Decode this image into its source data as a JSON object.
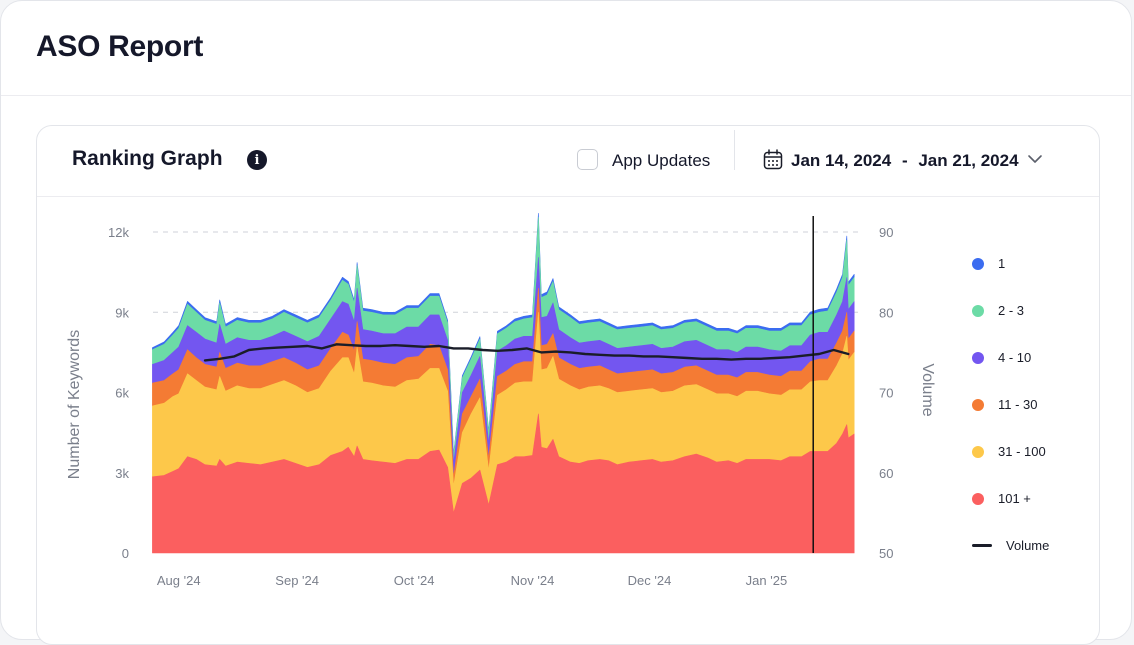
{
  "page": {
    "title": "ASO Report"
  },
  "ranking": {
    "title": "Ranking Graph",
    "info_symbol": "i",
    "app_updates_label": "App Updates",
    "date_start": "Jan 14, 2024",
    "date_separator": "-",
    "date_end": "Jan 21, 2024"
  },
  "colors": {
    "r1": "#3b6cf0",
    "r2_3": "#6cdba6",
    "r4_10": "#7356f0",
    "r11_30": "#f47b34",
    "r31_100": "#fdc84a",
    "r101": "#fb5f5f",
    "volume": "#1a1d29"
  },
  "chart_data": {
    "type": "area",
    "stacked": true,
    "title": "Ranking Graph",
    "ylabel": "Number of Keywords",
    "y2label": "Volume",
    "ylim": [
      0,
      12000
    ],
    "y2lim": [
      50,
      90
    ],
    "y_ticks": [
      "12k",
      "9k",
      "6k",
      "3k",
      "0"
    ],
    "y2_ticks": [
      "90",
      "80",
      "70",
      "60",
      "50"
    ],
    "x_ticks": [
      "Aug '24",
      "Sep '24",
      "Oct '24",
      "Nov '24",
      "Dec '24",
      "Jan '25"
    ],
    "x_tick_positions": [
      0.6,
      4.65,
      8.65,
      12.7,
      16.7,
      20.7
    ],
    "x_domain": [
      -0.28,
      23.9
    ],
    "marker_x": 22.3,
    "x": [
      -0.3,
      0.1,
      0.4,
      0.6,
      0.9,
      1.2,
      1.5,
      1.9,
      2.2,
      2.6,
      3.0,
      3.4,
      3.8,
      4.2,
      4.6,
      5.0,
      5.4,
      5.8,
      6.2,
      6.4,
      6.6,
      6.9,
      7.2,
      7.6,
      8.0,
      8.4,
      8.8,
      9.2,
      9.5,
      9.8,
      10.0,
      10.3,
      10.6,
      10.9,
      11.2,
      11.5,
      11.8,
      12.1,
      12.4,
      12.7,
      13.0,
      13.2,
      13.4,
      13.6,
      14.0,
      14.3,
      14.6,
      15.0,
      15.3,
      15.6,
      16.0,
      16.4,
      16.8,
      17.1,
      17.5,
      17.9,
      18.3,
      18.7,
      19.0,
      19.4,
      19.7,
      20.0,
      20.4,
      20.8,
      21.2,
      21.5,
      21.9,
      22.2,
      22.5,
      22.8,
      23.1,
      23.3,
      23.5,
      23.7
    ],
    "series": [
      {
        "name": "101 +",
        "values": [
          2850,
          2900,
          3050,
          3150,
          3600,
          3500,
          3300,
          3250,
          3250,
          3400,
          3350,
          3300,
          3400,
          3500,
          3350,
          3200,
          3300,
          3650,
          3800,
          3950,
          3600,
          3500,
          3450,
          3400,
          3350,
          3500,
          3500,
          3800,
          3850,
          3200,
          1500,
          2600,
          2800,
          3100,
          1800,
          3300,
          3400,
          3600,
          3600,
          3650,
          3950,
          3900,
          4250,
          3600,
          3400,
          3350,
          3450,
          3500,
          3450,
          3300,
          3400,
          3450,
          3500,
          3400,
          3450,
          3600,
          3700,
          3550,
          3400,
          3450,
          3350,
          3500,
          3500,
          3500,
          3450,
          3600,
          3600,
          3800,
          3800,
          3800,
          4100,
          4450,
          4300,
          4450
        ]
      },
      {
        "name": "31 - 100",
        "values": [
          2650,
          2700,
          2800,
          2800,
          3100,
          2950,
          2900,
          2850,
          2800,
          2850,
          2800,
          2850,
          2900,
          2950,
          2900,
          2800,
          2850,
          3150,
          3500,
          3350,
          3100,
          2900,
          2900,
          2850,
          2850,
          2950,
          3000,
          3100,
          3050,
          2850,
          1000,
          1900,
          2400,
          2700,
          1300,
          2600,
          2700,
          2750,
          2800,
          2750,
          2900,
          3000,
          3100,
          2900,
          2850,
          2750,
          2750,
          2750,
          2700,
          2700,
          2650,
          2650,
          2650,
          2600,
          2600,
          2650,
          2600,
          2550,
          2550,
          2500,
          2500,
          2550,
          2550,
          2450,
          2450,
          2500,
          2500,
          2600,
          2650,
          2650,
          2900,
          3000,
          2900,
          3050
        ]
      },
      {
        "name": "11 - 30",
        "values": [
          850,
          850,
          850,
          900,
          900,
          850,
          850,
          850,
          850,
          850,
          850,
          850,
          850,
          850,
          850,
          850,
          850,
          850,
          950,
          850,
          850,
          850,
          850,
          850,
          850,
          850,
          850,
          900,
          850,
          800,
          350,
          700,
          650,
          700,
          450,
          700,
          700,
          700,
          750,
          750,
          900,
          900,
          850,
          800,
          800,
          800,
          750,
          750,
          700,
          700,
          700,
          700,
          700,
          700,
          700,
          700,
          700,
          700,
          700,
          700,
          700,
          700,
          700,
          700,
          700,
          700,
          700,
          750,
          800,
          800,
          850,
          850,
          800,
          800
        ]
      },
      {
        "name": "4 - 10",
        "values": [
          700,
          750,
          800,
          850,
          900,
          950,
          950,
          900,
          900,
          950,
          950,
          950,
          950,
          1000,
          1000,
          1050,
          1100,
          1100,
          1150,
          1150,
          1100,
          1100,
          1100,
          1100,
          1150,
          1150,
          1100,
          1100,
          1150,
          1100,
          500,
          800,
          800,
          850,
          550,
          950,
          950,
          950,
          950,
          950,
          1050,
          1050,
          1150,
          1050,
          1000,
          950,
          950,
          950,
          950,
          950,
          950,
          950,
          950,
          950,
          950,
          950,
          950,
          950,
          950,
          950,
          950,
          950,
          950,
          950,
          950,
          950,
          950,
          1000,
          1000,
          1000,
          1050,
          1100,
          1100,
          1100
        ]
      },
      {
        "name": "2 - 3",
        "values": [
          550,
          600,
          650,
          700,
          800,
          750,
          700,
          700,
          650,
          650,
          650,
          650,
          650,
          700,
          700,
          700,
          700,
          700,
          800,
          750,
          700,
          700,
          700,
          700,
          700,
          700,
          700,
          700,
          700,
          650,
          300,
          550,
          600,
          650,
          400,
          650,
          650,
          650,
          650,
          700,
          750,
          800,
          800,
          750,
          750,
          700,
          700,
          700,
          700,
          700,
          700,
          700,
          700,
          700,
          700,
          700,
          700,
          700,
          700,
          700,
          700,
          700,
          700,
          700,
          750,
          750,
          750,
          750,
          750,
          800,
          850,
          900,
          900,
          900
        ]
      },
      {
        "name": "1",
        "values": [
          80,
          90,
          100,
          100,
          110,
          100,
          100,
          100,
          100,
          100,
          100,
          100,
          100,
          100,
          100,
          100,
          100,
          100,
          110,
          100,
          100,
          100,
          100,
          100,
          100,
          100,
          100,
          100,
          100,
          100,
          50,
          80,
          80,
          90,
          60,
          90,
          90,
          100,
          100,
          100,
          110,
          110,
          110,
          100,
          100,
          100,
          100,
          100,
          100,
          100,
          100,
          100,
          100,
          100,
          100,
          100,
          100,
          100,
          100,
          100,
          100,
          100,
          100,
          100,
          100,
          100,
          100,
          110,
          110,
          110,
          120,
          120,
          120,
          120
        ]
      }
    ],
    "spikes": [
      {
        "x": 2.0,
        "values": [
          3500,
          3100,
          900,
          1050,
          800,
          110
        ]
      },
      {
        "x": 6.7,
        "values": [
          4000,
          3700,
          950,
          1250,
          850,
          110
        ]
      },
      {
        "x": 12.9,
        "values": [
          5200,
          3800,
          900,
          1150,
          1500,
          150
        ]
      },
      {
        "x": 23.45,
        "values": [
          4800,
          3300,
          900,
          1300,
          1400,
          150
        ]
      }
    ],
    "volume": {
      "name": "Volume",
      "x": [
        1.5,
        2.0,
        2.5,
        3.0,
        3.5,
        4.0,
        4.5,
        5.0,
        5.5,
        6.0,
        6.5,
        7.0,
        7.5,
        8.0,
        8.5,
        9.0,
        9.5,
        10.0,
        10.5,
        11.0,
        11.5,
        12.0,
        12.5,
        13.0,
        13.5,
        14.0,
        14.5,
        15.0,
        15.5,
        16.0,
        16.5,
        17.0,
        17.5,
        18.0,
        18.5,
        19.0,
        19.5,
        20.0,
        20.5,
        21.0,
        21.5,
        22.0,
        22.5,
        23.0,
        23.5
      ],
      "values": [
        74.0,
        74.2,
        74.5,
        75.3,
        75.5,
        75.6,
        75.7,
        75.8,
        75.5,
        76.0,
        75.9,
        75.8,
        75.8,
        75.9,
        75.8,
        75.7,
        75.8,
        75.5,
        75.5,
        75.3,
        75.2,
        75.3,
        75.5,
        75.0,
        75.1,
        75.0,
        74.8,
        74.7,
        74.6,
        74.6,
        74.5,
        74.5,
        74.4,
        74.3,
        74.2,
        74.2,
        74.1,
        74.2,
        74.2,
        74.3,
        74.4,
        74.6,
        74.8,
        75.3,
        74.8
      ]
    },
    "legend": [
      "1",
      "2 - 3",
      "4 - 10",
      "11 - 30",
      "31 - 100",
      "101 +",
      "Volume"
    ],
    "legend_position": "right",
    "grid": true
  }
}
